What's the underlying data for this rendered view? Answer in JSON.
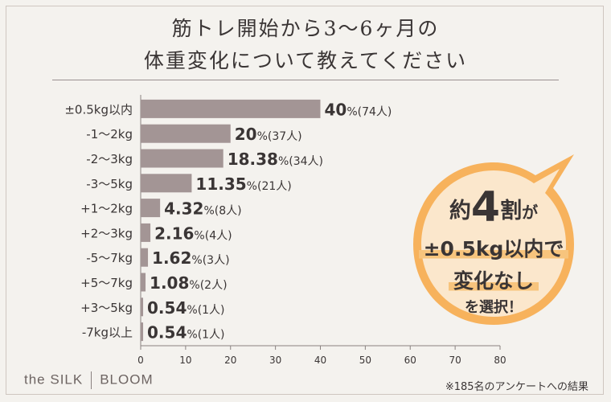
{
  "title": {
    "line1": "筋トレ開始から3〜6ヶ月の",
    "line2": "体重変化について教えてください"
  },
  "chart_data": {
    "type": "bar",
    "orientation": "horizontal",
    "categories": [
      "±0.5kg以内",
      "-1〜2kg",
      "-2〜3kg",
      "-3〜5kg",
      "+1〜2kg",
      "+2〜3kg",
      "-5〜7kg",
      "+5〜7kg",
      "+3〜5kg",
      "-7kg以上"
    ],
    "values": [
      40,
      20,
      18.38,
      11.35,
      4.32,
      2.16,
      1.62,
      1.08,
      0.54,
      0.54
    ],
    "value_labels": [
      "40",
      "20",
      "18.38",
      "11.35",
      "4.32",
      "2.16",
      "1.62",
      "1.08",
      "0.54",
      "0.54"
    ],
    "counts": [
      "(74人)",
      "(37人)",
      "(34人)",
      "(21人)",
      "(8人)",
      "(4人)",
      "(3人)",
      "(2人)",
      "(1人)",
      "(1人)"
    ],
    "percent_sign": "%",
    "xlim": [
      0,
      80
    ],
    "xticks": [
      "0",
      "10",
      "20",
      "30",
      "40",
      "50",
      "60",
      "70",
      "80"
    ],
    "grid": false,
    "bar_color": "#a39595"
  },
  "callout": {
    "line1_pre": "約",
    "line1_big": "4",
    "line1_post": "割",
    "line1_small": "が",
    "line2": "±0.5kg以内で",
    "line3": "変化なし",
    "line4": "を選択！",
    "fill_color": "#f7b25c"
  },
  "brand": {
    "left": "the SILK",
    "right": "BLOOM"
  },
  "footnote": "※185名のアンケートへの結果"
}
